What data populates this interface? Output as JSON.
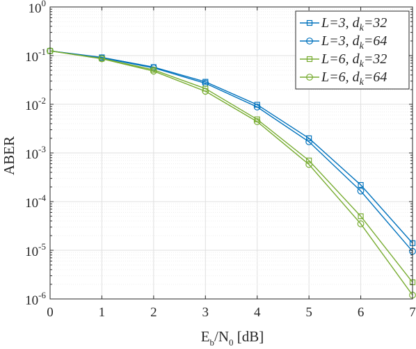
{
  "chart_data": {
    "type": "line",
    "x": [
      0,
      1,
      2,
      3,
      4,
      5,
      6,
      7
    ],
    "xlim": [
      0,
      7
    ],
    "ylim": [
      1e-06,
      1
    ],
    "yscale": "log",
    "xlabel": {
      "base": "E",
      "sub1": "b",
      "mid": "/N",
      "sub2": "0",
      "tail": " [dB]"
    },
    "ylabel": "ABER",
    "x_tick_labels": [
      "0",
      "1",
      "2",
      "3",
      "4",
      "5",
      "6",
      "7"
    ],
    "y_ticks": [
      {
        "value": 1,
        "base": "10",
        "exp": "0"
      },
      {
        "value": 0.1,
        "base": "10",
        "exp": "-1"
      },
      {
        "value": 0.01,
        "base": "10",
        "exp": "-2"
      },
      {
        "value": 0.001,
        "base": "10",
        "exp": "-3"
      },
      {
        "value": 0.0001,
        "base": "10",
        "exp": "-4"
      },
      {
        "value": 1e-05,
        "base": "10",
        "exp": "-5"
      },
      {
        "value": 1e-06,
        "base": "10",
        "exp": "-6"
      }
    ],
    "grid": true,
    "legend_position": "top-right",
    "series": [
      {
        "name": "L=3, d_k=32",
        "label": {
          "main": "L=3, d",
          "sub": "k",
          "tail": "=32"
        },
        "color": "#0072BD",
        "marker": "square",
        "values": [
          0.125,
          0.092,
          0.058,
          0.029,
          0.0098,
          0.002,
          0.00022,
          1.4e-05
        ]
      },
      {
        "name": "L=3, d_k=64",
        "label": {
          "main": "L=3, d",
          "sub": "k",
          "tail": "=64"
        },
        "color": "#0072BD",
        "marker": "circle",
        "values": [
          0.125,
          0.09,
          0.056,
          0.027,
          0.0088,
          0.0017,
          0.000165,
          9.5e-06
        ]
      },
      {
        "name": "L=6, d_k=32",
        "label": {
          "main": "L=6, d",
          "sub": "k",
          "tail": "=32"
        },
        "color": "#77AC30",
        "marker": "square",
        "values": [
          0.125,
          0.087,
          0.051,
          0.021,
          0.0049,
          0.0007,
          5e-05,
          2.2e-06
        ]
      },
      {
        "name": "L=6, d_k=64",
        "label": {
          "main": "L=6, d",
          "sub": "k",
          "tail": "=64"
        },
        "color": "#77AC30",
        "marker": "circle",
        "values": [
          0.125,
          0.086,
          0.048,
          0.0185,
          0.0044,
          0.00058,
          3.5e-05,
          1.2e-06
        ]
      }
    ]
  }
}
